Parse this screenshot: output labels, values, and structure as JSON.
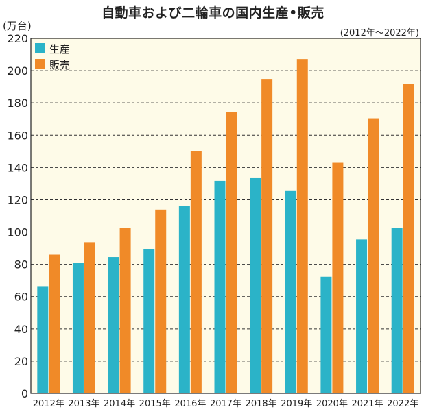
{
  "chart_data": {
    "type": "bar",
    "title": "自動車および二輪車の国内生産•販売",
    "unit_label": "(万台)",
    "range_label": "(2012年〜2022年)",
    "categories": [
      "2012年",
      "2013年",
      "2014年",
      "2015年",
      "2016年",
      "2017年",
      "2018年",
      "2019年",
      "2020年",
      "2021年",
      "2022年"
    ],
    "series": [
      {
        "name": "生産",
        "color": "#2bb3c8",
        "values": [
          66.5,
          80.9,
          84.5,
          89.3,
          116.0,
          131.7,
          133.8,
          125.8,
          72.3,
          95.4,
          102.7
        ]
      },
      {
        "name": "販売",
        "color": "#f08a28",
        "values": [
          86.0,
          93.7,
          102.5,
          113.9,
          150.0,
          174.4,
          194.9,
          207.2,
          142.9,
          170.5,
          191.9
        ]
      }
    ],
    "ylim": [
      0,
      220
    ],
    "yticks": [
      0,
      20,
      40,
      60,
      80,
      100,
      120,
      140,
      160,
      180,
      200,
      220
    ],
    "grid": true,
    "legend_position": "top-left",
    "plot_background": "#fefbe8"
  }
}
